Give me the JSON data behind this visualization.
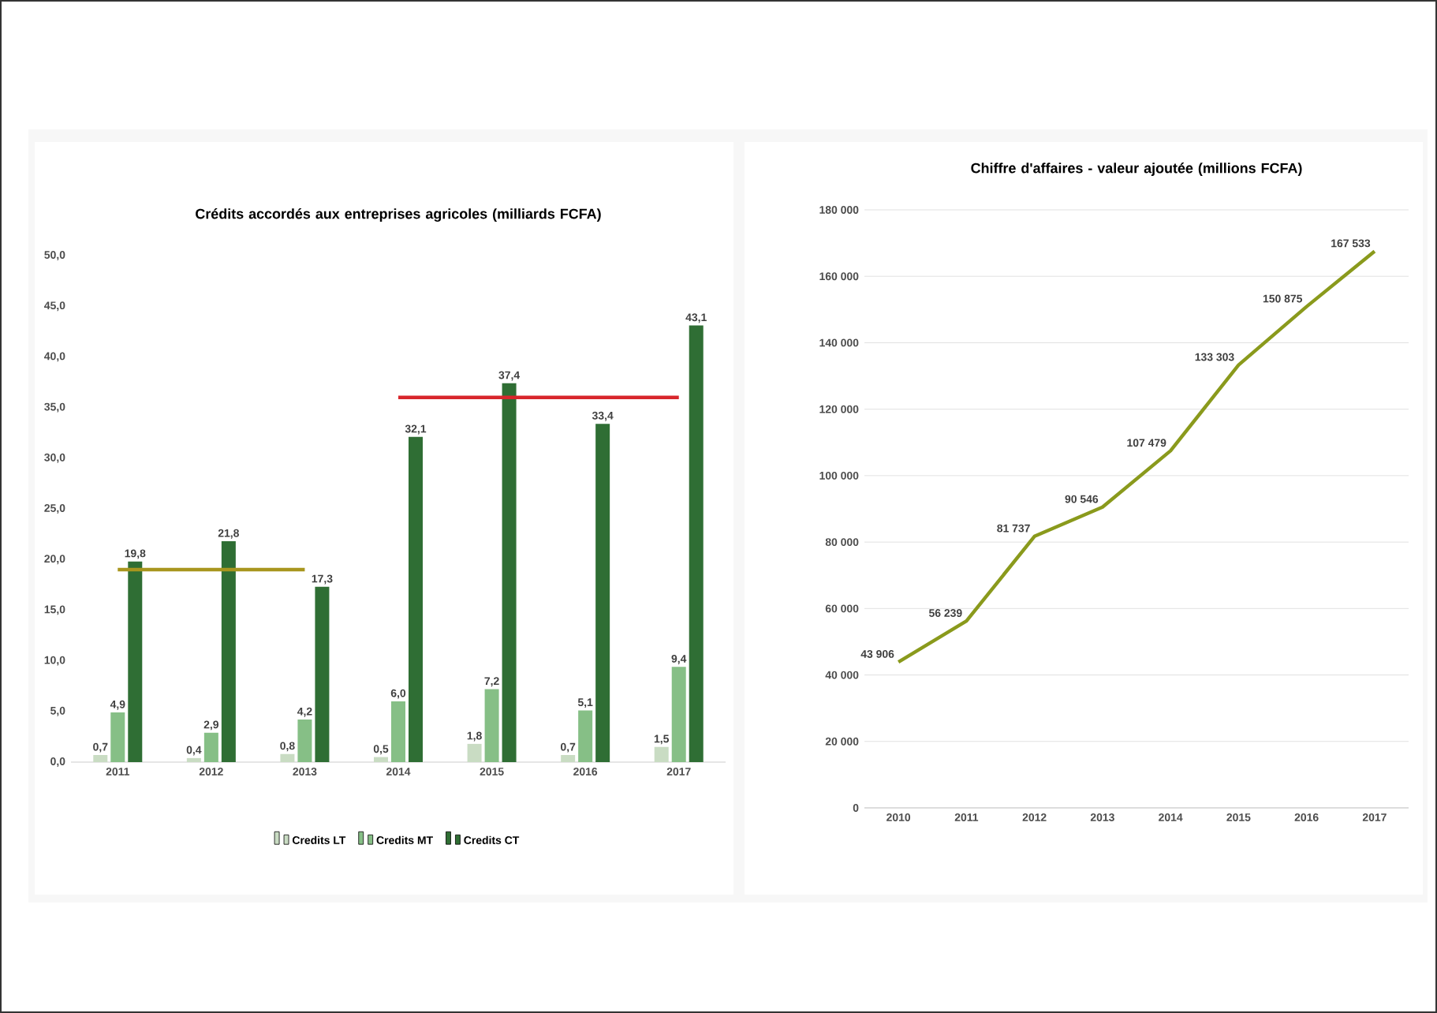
{
  "chart_data": [
    {
      "type": "bar",
      "title": "Crédits accordés aux entreprises agricoles (milliards FCFA)",
      "categories": [
        "2011",
        "2012",
        "2013",
        "2014",
        "2015",
        "2016",
        "2017"
      ],
      "series": [
        {
          "name": "Credits LT",
          "color": "#c9dcc3",
          "values": [
            0.7,
            0.4,
            0.8,
            0.5,
            1.8,
            0.7,
            1.5
          ],
          "value_labels": [
            "0,7",
            "0,4",
            "0,8",
            "0,5",
            "1,8",
            "0,7",
            "1,5"
          ]
        },
        {
          "name": "Credits MT",
          "color": "#86bf86",
          "values": [
            4.9,
            2.9,
            4.2,
            6.0,
            7.2,
            5.1,
            9.4
          ],
          "value_labels": [
            "4,9",
            "2,9",
            "4,2",
            "6,0",
            "7,2",
            "5,1",
            "9,4"
          ]
        },
        {
          "name": "Credits CT",
          "color": "#2f6e34",
          "values": [
            19.8,
            21.8,
            17.3,
            32.1,
            37.4,
            33.4,
            43.1
          ],
          "value_labels": [
            "19,8",
            "21,8",
            "17,3",
            "32,1",
            "37,4",
            "33,4",
            "43,1"
          ]
        },
        {
          "type": "line",
          "color": "#a8961e",
          "values": [
            19.0,
            19.0,
            19.0,
            null,
            null,
            null,
            null
          ]
        },
        {
          "type": "line",
          "color": "#d8262c",
          "values": [
            null,
            null,
            null,
            36.0,
            36.0,
            36.0,
            36.0
          ]
        }
      ],
      "ylim": [
        0,
        50
      ],
      "yticks": [
        {
          "value": 0,
          "label": "0,0"
        },
        {
          "value": 5,
          "label": "5,0"
        },
        {
          "value": 10,
          "label": "10,0"
        },
        {
          "value": 15,
          "label": "15,0"
        },
        {
          "value": 20,
          "label": "20,0"
        },
        {
          "value": 25,
          "label": "25,0"
        },
        {
          "value": 30,
          "label": "30,0"
        },
        {
          "value": 35,
          "label": "35,0"
        },
        {
          "value": 40,
          "label": "40,0"
        },
        {
          "value": 45,
          "label": "45,0"
        },
        {
          "value": 50,
          "label": "50,0"
        }
      ],
      "legend": "bottom",
      "grid": false
    },
    {
      "type": "line",
      "title": "Chiffre d'affaires - valeur ajoutée (millions FCFA)",
      "categories": [
        "2010",
        "2011",
        "2012",
        "2013",
        "2014",
        "2015",
        "2016",
        "2017"
      ],
      "series": [
        {
          "color": "#8a9a1c",
          "values": [
            43906,
            56239,
            81737,
            90546,
            107479,
            133303,
            150875,
            167533
          ],
          "value_labels": [
            "43 906",
            "56 239",
            "81 737",
            "90 546",
            "107 479",
            "133 303",
            "150 875",
            "167 533"
          ]
        }
      ],
      "ylim": [
        0,
        180000
      ],
      "yticks": [
        0,
        {
          "value": 20000,
          "label": "20 000"
        },
        {
          "value": 40000,
          "label": "40 000"
        },
        {
          "value": 60000,
          "label": "60 000"
        },
        {
          "value": 80000,
          "label": "80 000"
        },
        {
          "value": 100000,
          "label": "100 000"
        },
        {
          "value": 120000,
          "label": "120 000"
        },
        {
          "value": 140000,
          "label": "140 000"
        },
        {
          "value": 160000,
          "label": "160 000"
        },
        {
          "value": 180000,
          "label": "180 000"
        }
      ],
      "grid": "y",
      "legend": false,
      "marker": "none"
    }
  ]
}
